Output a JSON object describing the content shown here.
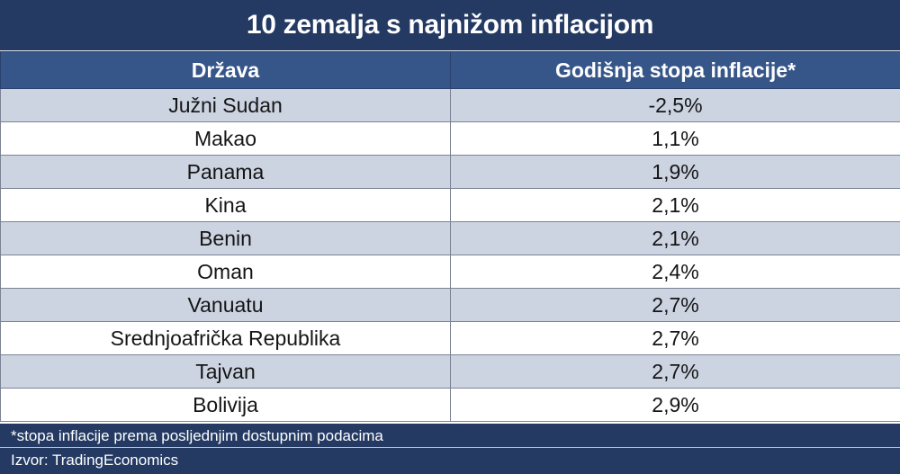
{
  "chart_data": {
    "type": "table",
    "title": "10 zemalja s najnižom inflacijom",
    "columns": [
      "Država",
      "Godišnja stopa inflacije*"
    ],
    "rows": [
      [
        "Južni Sudan",
        "-2,5%"
      ],
      [
        "Makao",
        "1,1%"
      ],
      [
        "Panama",
        "1,9%"
      ],
      [
        "Kina",
        "2,1%"
      ],
      [
        "Benin",
        "2,1%"
      ],
      [
        "Oman",
        "2,4%"
      ],
      [
        "Vanuatu",
        "2,7%"
      ],
      [
        "Srednjoafrička Republika",
        "2,7%"
      ],
      [
        "Tajvan",
        "2,7%"
      ],
      [
        "Bolivija",
        "2,9%"
      ]
    ],
    "values": [
      -2.5,
      1.1,
      1.9,
      2.1,
      2.1,
      2.4,
      2.7,
      2.7,
      2.7,
      2.9
    ],
    "footnote": "*stopa inflacije prema posljednjim dostupnim podacima",
    "source": "Izvor: TradingEconomics"
  },
  "colors": {
    "title_bg": "#243a63",
    "header_bg": "#365689",
    "row_alt": "#ccd3e1",
    "row_plain": "#ffffff"
  }
}
